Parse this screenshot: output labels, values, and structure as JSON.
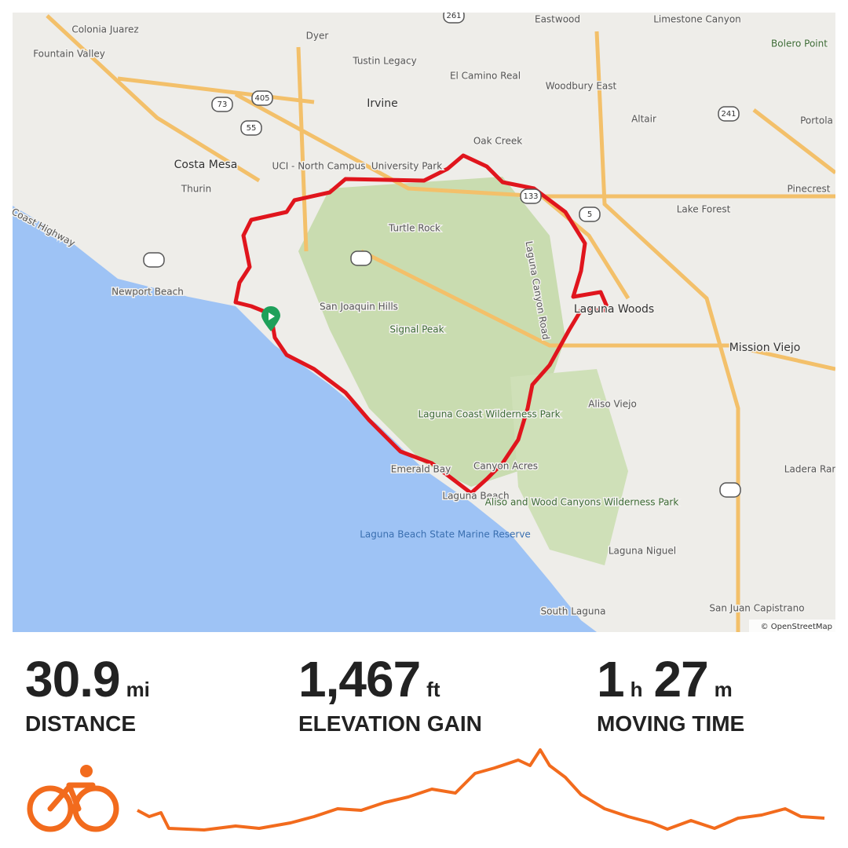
{
  "map": {
    "attribution": "© OpenStreetMap",
    "labels": [
      "Fountain Valley",
      "Colonia Juarez",
      "Costa Mesa",
      "Thurin",
      "Newport Beach",
      "Irvine",
      "Tustin Legacy",
      "Dyer",
      "El Camino Real",
      "Eastwood",
      "Woodbury East",
      "Oak Creek",
      "UCI - North Campus",
      "University Park",
      "Turtle Rock",
      "San Joaquin Hills",
      "Signal Peak",
      "Laguna Canyon Road",
      "Laguna Woods",
      "Lake Forest",
      "Altair",
      "Limestone Canyon",
      "Bolero Point",
      "Portola",
      "Pinecrest",
      "Mission Viejo",
      "Aliso Viejo",
      "Laguna Coast Wilderness Park",
      "Canyon Acres",
      "Emerald Bay",
      "Laguna Beach",
      "Laguna Beach State Marine Reserve",
      "Aliso and Wood Canyons Wilderness Park",
      "Laguna Niguel",
      "Ladera Ranch",
      "South Laguna",
      "San Juan Capistrano",
      "Coast Highway"
    ],
    "shields": [
      "261",
      "405",
      "73",
      "55",
      "133",
      "5",
      "241"
    ]
  },
  "stats": {
    "distance": {
      "value": 30.9,
      "unit": "mi",
      "label": "DISTANCE"
    },
    "elevation": {
      "value": "1,467",
      "unit": "ft",
      "label": "ELEVATION GAIN"
    },
    "time": {
      "hours": 1,
      "hours_unit": "h",
      "minutes": 27,
      "minutes_unit": "m",
      "label": "MOVING TIME"
    }
  }
}
